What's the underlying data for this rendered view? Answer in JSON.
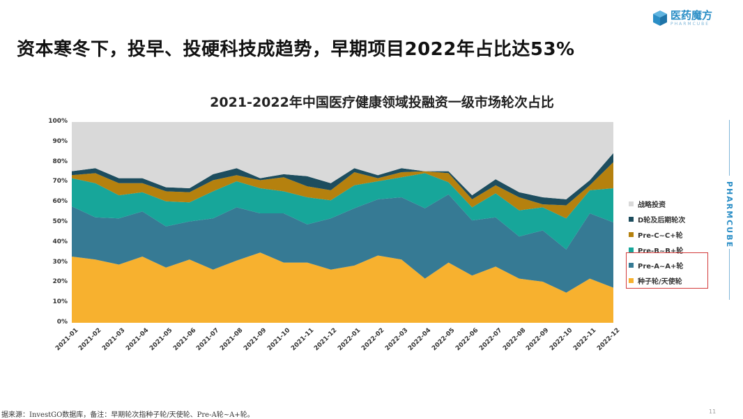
{
  "slide": {
    "title": "资本寒冬下，投早、投硬科技成趋势，早期项目2022年占比达53%",
    "footnote": "据来源：InvestGO数据库，备注：早期轮次指种子轮/天使轮、Pre-A轮~A+轮。",
    "page_number": "11"
  },
  "logo": {
    "cn": "医药魔方",
    "en": "PHARMCUBE",
    "color": "#2a8ec6"
  },
  "side_brand": {
    "text": "PHARMCUBE"
  },
  "chart_data": {
    "type": "area",
    "stacked": true,
    "normalized": true,
    "title": "2021-2022年中国医疗健康领域投融资一级市场轮次占比",
    "xlabel": "",
    "ylabel": "",
    "ylim": [
      0,
      100
    ],
    "yticks": [
      "0%",
      "10%",
      "20%",
      "30%",
      "40%",
      "50%",
      "60%",
      "70%",
      "80%",
      "90%",
      "100%"
    ],
    "grid": false,
    "legend_position": "right",
    "highlight_box": [
      "Pre-A~A+轮",
      "种子轮/天使轮"
    ],
    "categories": [
      "2021-01",
      "2021-02",
      "2021-03",
      "2021-04",
      "2021-05",
      "2021-06",
      "2021-07",
      "2021-08",
      "2021-09",
      "2021-10",
      "2021-11",
      "2021-12",
      "2022-01",
      "2022-02",
      "2022-03",
      "2022-04",
      "2022-05",
      "2022-06",
      "2022-07",
      "2022-08",
      "2022-09",
      "2022-10",
      "2022-11",
      "2022-12"
    ],
    "series": [
      {
        "name": "种子轮/天使轮",
        "color": "#f7b12f",
        "values": [
          33,
          31.5,
          29,
          33,
          27.5,
          31.5,
          26.5,
          31,
          35,
          30,
          30,
          26.5,
          28.5,
          33.5,
          31.5,
          22,
          30,
          23.5,
          28,
          22,
          20.5,
          15,
          22,
          17.5
        ]
      },
      {
        "name": "Pre-A~A+轮",
        "color": "#367a94",
        "values": [
          25,
          21,
          23,
          22.5,
          20.5,
          19,
          25.5,
          26.5,
          19.5,
          24.5,
          19,
          25.5,
          28.5,
          28,
          31,
          35,
          34,
          27.5,
          24.5,
          21,
          25.5,
          21.5,
          32.5,
          32.5
        ]
      },
      {
        "name": "Pre-B~B+轮",
        "color": "#17a69a",
        "values": [
          14,
          17,
          11.5,
          9.5,
          12.5,
          9.5,
          13.5,
          13,
          12.5,
          11,
          13.5,
          9,
          11.5,
          9,
          10,
          17.5,
          6,
          6.5,
          12,
          13,
          11.5,
          15.5,
          11.5,
          17
        ]
      },
      {
        "name": "Pre-C~C+轮",
        "color": "#b5810e",
        "values": [
          1.5,
          5,
          6,
          4.5,
          5,
          5,
          5.5,
          3,
          4,
          7,
          5.5,
          5,
          6.5,
          1.5,
          2.5,
          1,
          4.5,
          4,
          4,
          6.5,
          1.5,
          6.5,
          2.5,
          13
        ]
      },
      {
        "name": "D轮及后期轮次",
        "color": "#1d4d5e",
        "values": [
          2,
          2.5,
          2.5,
          2.5,
          2,
          2,
          3,
          3.5,
          1,
          1.5,
          5,
          3.5,
          2,
          1.5,
          2,
          0,
          1,
          2,
          3,
          2.5,
          3.5,
          3,
          2.5,
          4.5
        ]
      },
      {
        "name": "战略投资",
        "color": "#d9d9d9",
        "values": [
          24.5,
          23,
          28,
          28,
          32.5,
          33,
          26,
          23,
          28,
          26,
          27,
          30.5,
          23,
          26.5,
          23,
          24.5,
          24.5,
          36.5,
          28.5,
          35,
          37.5,
          38.5,
          29,
          15.5
        ]
      }
    ]
  },
  "legend": {
    "items": [
      {
        "label": "战略投资",
        "color": "#d9d9d9"
      },
      {
        "label": "D轮及后期轮次",
        "color": "#1d4d5e"
      },
      {
        "label": "Pre-C~C+轮",
        "color": "#b5810e"
      },
      {
        "label": "Pre-B~B+轮",
        "color": "#17a69a"
      },
      {
        "label": "Pre-A~A+轮",
        "color": "#367a94"
      },
      {
        "label": "种子轮/天使轮",
        "color": "#f7b12f"
      }
    ]
  }
}
